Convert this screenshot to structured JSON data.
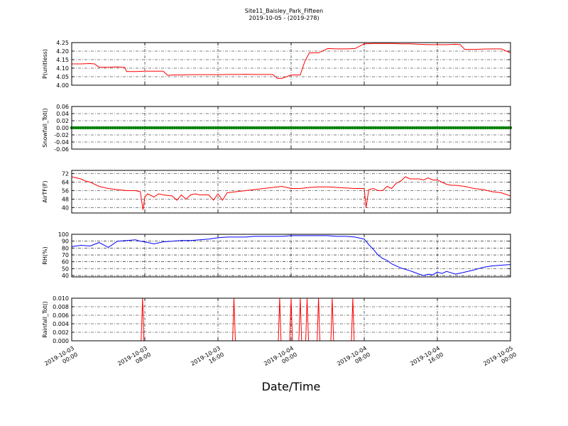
{
  "title": "Site11_Baisley_Park_Fifteen",
  "subtitle": "2019-10-05 - (2019-278)",
  "xlabel": "Date/Time",
  "x_ticks": [
    {
      "date": "2019-10-03",
      "time": "00:00",
      "x": 0
    },
    {
      "date": "2019-10-03",
      "time": "08:00",
      "x": 8
    },
    {
      "date": "2019-10-03",
      "time": "16:00",
      "x": 16
    },
    {
      "date": "2019-10-04",
      "time": "00:00",
      "x": 24
    },
    {
      "date": "2019-10-04",
      "time": "08:00",
      "x": 32
    },
    {
      "date": "2019-10-04",
      "time": "16:00",
      "x": 40
    },
    {
      "date": "2019-10-05",
      "time": "00:00",
      "x": 48
    }
  ],
  "colors": {
    "red": "#ff0000",
    "green": "#008000",
    "blue": "#0000ff"
  },
  "chart_data": [
    {
      "type": "line",
      "ylabel": "P(unitless)",
      "ylim": [
        4.0,
        4.25
      ],
      "yticks": [
        "4.25",
        "4.20",
        "4.15",
        "4.10",
        "4.05",
        "4.00"
      ],
      "ytick_values": [
        4.25,
        4.2,
        4.15,
        4.1,
        4.05,
        4.0
      ],
      "x_unit": "hours since 2019-10-03 00:00",
      "xlim": [
        0,
        48
      ],
      "series": [
        {
          "color": "#ff0000",
          "marker": "none",
          "x": [
            0,
            1,
            2,
            2.5,
            3,
            4,
            5,
            5.8,
            6,
            7,
            8,
            9,
            10,
            10.5,
            11,
            12,
            13,
            14,
            15,
            16,
            17,
            18,
            19,
            20,
            21,
            22,
            22.5,
            23,
            24,
            25,
            25.5,
            26,
            27,
            28,
            29,
            30,
            31,
            32,
            33,
            34,
            35,
            36,
            37,
            38,
            39,
            40,
            41,
            42,
            42.5,
            43,
            44,
            45,
            46,
            47,
            48
          ],
          "y": [
            4.125,
            4.125,
            4.127,
            4.125,
            4.105,
            4.105,
            4.107,
            4.105,
            4.08,
            4.08,
            4.082,
            4.082,
            4.082,
            4.058,
            4.06,
            4.06,
            4.062,
            4.062,
            4.062,
            4.062,
            4.063,
            4.063,
            4.064,
            4.063,
            4.063,
            4.063,
            4.04,
            4.04,
            4.06,
            4.06,
            4.14,
            4.19,
            4.19,
            4.215,
            4.213,
            4.213,
            4.215,
            4.243,
            4.245,
            4.245,
            4.245,
            4.243,
            4.243,
            4.24,
            4.238,
            4.238,
            4.238,
            4.24,
            4.238,
            4.21,
            4.21,
            4.212,
            4.213,
            4.213,
            4.19
          ]
        }
      ]
    },
    {
      "type": "scatter",
      "ylabel": "Snowfall_Tot()",
      "ylim": [
        -0.06,
        0.06
      ],
      "yticks": [
        "0.06",
        "0.04",
        "0.02",
        "0.00",
        "-0.02",
        "-0.04",
        "-0.06"
      ],
      "ytick_values": [
        0.06,
        0.04,
        0.02,
        0.0,
        -0.02,
        -0.04,
        -0.06
      ],
      "xlim": [
        0,
        48
      ],
      "series": [
        {
          "color": "#008000",
          "marker": "dot",
          "x_range": [
            0,
            48
          ],
          "interval": 0.25,
          "y_constant": 0.0
        }
      ]
    },
    {
      "type": "line",
      "ylabel": "AirTF(F)",
      "ylim": [
        35,
        75
      ],
      "yticks": [
        "72",
        "64",
        "56",
        "48",
        "40"
      ],
      "ytick_values": [
        72,
        64,
        56,
        48,
        40
      ],
      "xlim": [
        0,
        48
      ],
      "series": [
        {
          "color": "#ff0000",
          "marker": "none",
          "x": [
            0,
            0.5,
            1,
            1.5,
            2,
            3,
            4,
            5,
            6,
            7,
            7.5,
            7.8,
            8,
            8.3,
            9,
            9.5,
            10,
            11,
            11.5,
            12,
            12.5,
            13,
            13.5,
            14,
            15,
            15.5,
            16,
            16.5,
            17,
            18,
            19,
            20,
            21,
            22,
            23,
            24,
            25,
            26,
            27,
            28,
            29,
            30,
            31,
            32,
            32.2,
            32.5,
            33,
            33.5,
            34,
            34.5,
            35,
            35.5,
            36,
            36.5,
            37,
            37.5,
            38,
            38.5,
            39,
            39.5,
            40,
            40.5,
            41,
            41.5,
            42,
            43,
            44,
            45,
            46,
            47,
            48
          ],
          "y": [
            69,
            68,
            67,
            65,
            64,
            60,
            58,
            57,
            56,
            56,
            55,
            38,
            50,
            53,
            50,
            53,
            52,
            51,
            47,
            52,
            48,
            52,
            53,
            52,
            52,
            47,
            53,
            47,
            54,
            55,
            56,
            57,
            58,
            59,
            60,
            58,
            58,
            59,
            59.5,
            59.5,
            59,
            58.5,
            58,
            58,
            40,
            57,
            58,
            56,
            56,
            60,
            58,
            63,
            65,
            69,
            67,
            67,
            67,
            66,
            68,
            66,
            66,
            64,
            62,
            61,
            61,
            60,
            58,
            57,
            55,
            54,
            51
          ]
        }
      ]
    },
    {
      "type": "line",
      "ylabel": "RH(%)",
      "ylim": [
        38,
        100
      ],
      "yticks": [
        "100",
        "90",
        "80",
        "70",
        "60",
        "50",
        "40"
      ],
      "ytick_values": [
        100,
        90,
        80,
        70,
        60,
        50,
        40
      ],
      "xlim": [
        0,
        48
      ],
      "series": [
        {
          "color": "#0000ff",
          "marker": "none",
          "x": [
            0,
            1,
            2,
            3,
            4,
            5,
            6,
            7,
            7.5,
            8,
            9,
            10,
            11,
            12,
            13,
            14,
            15,
            16,
            17,
            18,
            19,
            20,
            21,
            22,
            23,
            24,
            25,
            26,
            27,
            28,
            29,
            30,
            31,
            32,
            32.5,
            33,
            33.5,
            34,
            34.5,
            35,
            36,
            37,
            38,
            38.5,
            39,
            39.5,
            40,
            40.5,
            41,
            42,
            43,
            44,
            45,
            46,
            47,
            48
          ],
          "y": [
            82,
            84,
            83,
            88,
            81,
            90,
            91,
            92,
            90,
            89,
            86,
            89,
            90,
            91,
            91,
            92,
            93,
            95,
            96,
            96,
            96,
            97,
            97,
            97,
            97,
            98,
            98,
            98,
            98,
            98,
            97,
            97,
            96,
            93,
            85,
            78,
            70,
            65,
            62,
            57,
            51,
            47,
            42,
            40,
            42,
            41,
            45,
            43,
            46,
            42,
            45,
            48,
            52,
            54,
            55,
            56
          ]
        }
      ]
    },
    {
      "type": "line",
      "ylabel": "Rainfall_Tot()",
      "ylim": [
        0,
        0.01
      ],
      "yticks": [
        "0.010",
        "0.008",
        "0.006",
        "0.004",
        "0.002",
        "0.000"
      ],
      "ytick_values": [
        0.01,
        0.008,
        0.006,
        0.004,
        0.002,
        0.0
      ],
      "xlim": [
        0,
        48
      ],
      "series": [
        {
          "color": "#ff0000",
          "marker": "none",
          "x": [
            0,
            7.6,
            7.75,
            7.9,
            17.6,
            17.75,
            17.9,
            22.6,
            22.75,
            22.9,
            23.85,
            24,
            24.15,
            24.85,
            25,
            25.15,
            25.6,
            25.75,
            25.9,
            26.85,
            27,
            27.15,
            28.35,
            28.5,
            28.65,
            30.6,
            30.75,
            30.9,
            48
          ],
          "y": [
            0,
            0,
            0.01,
            0,
            0,
            0.01,
            0,
            0,
            0.01,
            0,
            0,
            0.01,
            0,
            0,
            0.01,
            0,
            0,
            0.01,
            0,
            0,
            0.01,
            0,
            0,
            0.01,
            0,
            0,
            0.01,
            0,
            0
          ]
        }
      ]
    }
  ]
}
